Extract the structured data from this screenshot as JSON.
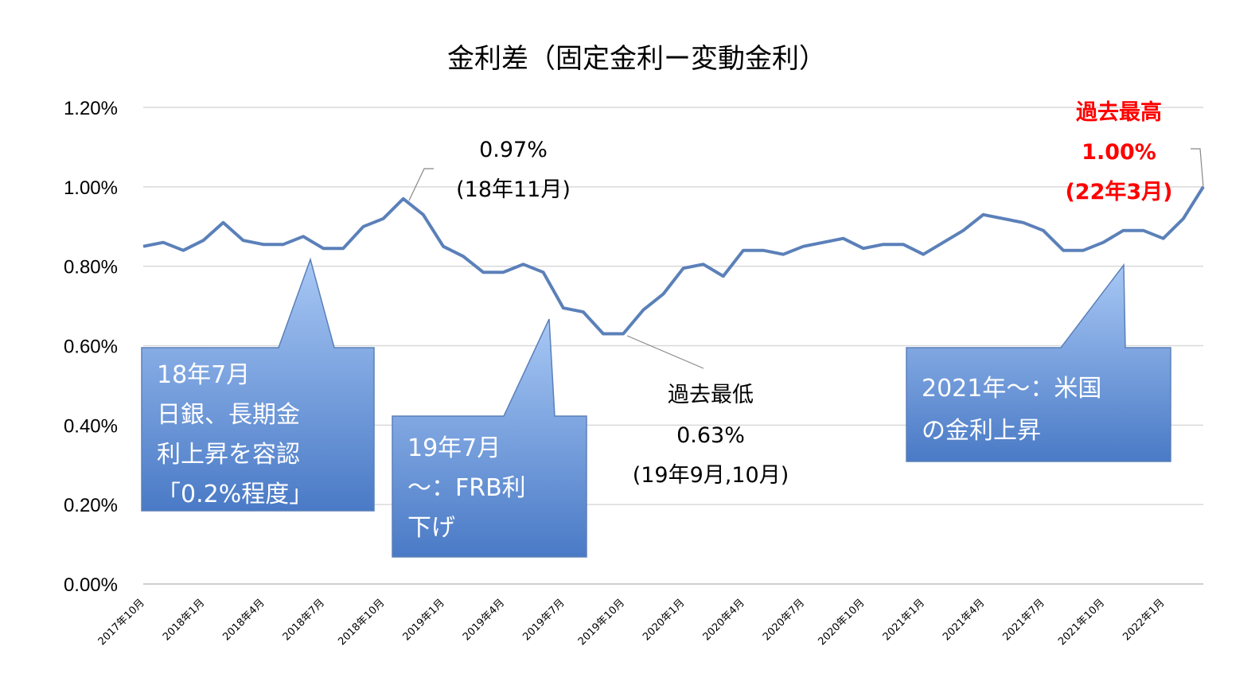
{
  "chart_data": {
    "type": "line",
    "title": "金利差（固定金利ー変動金利）",
    "ylim": [
      0,
      1.2
    ],
    "y_ticks": [
      {
        "value": 0.0,
        "label": "0.00%"
      },
      {
        "value": 0.2,
        "label": "0.20%"
      },
      {
        "value": 0.4,
        "label": "0.40%"
      },
      {
        "value": 0.6,
        "label": "0.60%"
      },
      {
        "value": 0.8,
        "label": "0.80%"
      },
      {
        "value": 1.0,
        "label": "1.00%"
      },
      {
        "value": 1.2,
        "label": "1.20%"
      }
    ],
    "grid": true,
    "legend": "none",
    "x_tick_labels": [
      {
        "index": 0,
        "label": "2017年10月"
      },
      {
        "index": 3,
        "label": "2018年1月"
      },
      {
        "index": 6,
        "label": "2018年4月"
      },
      {
        "index": 9,
        "label": "2018年7月"
      },
      {
        "index": 12,
        "label": "2018年10月"
      },
      {
        "index": 15,
        "label": "2019年1月"
      },
      {
        "index": 18,
        "label": "2019年4月"
      },
      {
        "index": 21,
        "label": "2019年7月"
      },
      {
        "index": 24,
        "label": "2019年10月"
      },
      {
        "index": 27,
        "label": "2020年1月"
      },
      {
        "index": 30,
        "label": "2020年4月"
      },
      {
        "index": 33,
        "label": "2020年7月"
      },
      {
        "index": 36,
        "label": "2020年10月"
      },
      {
        "index": 39,
        "label": "2021年1月"
      },
      {
        "index": 42,
        "label": "2021年4月"
      },
      {
        "index": 45,
        "label": "2021年7月"
      },
      {
        "index": 48,
        "label": "2021年10月"
      },
      {
        "index": 51,
        "label": "2022年1月"
      }
    ],
    "series": [
      {
        "color": "#5b80b9",
        "values": [
          0.85,
          0.86,
          0.84,
          0.865,
          0.91,
          0.865,
          0.855,
          0.855,
          0.875,
          0.845,
          0.845,
          0.9,
          0.92,
          0.97,
          0.93,
          0.85,
          0.825,
          0.785,
          0.785,
          0.805,
          0.785,
          0.695,
          0.685,
          0.63,
          0.63,
          0.69,
          0.73,
          0.795,
          0.805,
          0.775,
          0.84,
          0.84,
          0.83,
          0.85,
          0.86,
          0.87,
          0.845,
          0.855,
          0.855,
          0.83,
          0.86,
          0.89,
          0.93,
          0.92,
          0.91,
          0.89,
          0.84,
          0.84,
          0.86,
          0.89,
          0.89,
          0.87,
          0.92,
          1.0
        ]
      }
    ],
    "annotations": [
      {
        "lines": [
          "0.97%",
          "(18年11月)"
        ],
        "color": "#000000",
        "point_index": 13
      },
      {
        "lines": [
          "過去最低",
          "0.63%",
          "(19年9月,10月)"
        ],
        "color": "#000000",
        "point_index": 24
      },
      {
        "lines": [
          "過去最高",
          "1.00%",
          "(22年3月)"
        ],
        "color": "#ff0000",
        "point_index": 53
      }
    ],
    "callouts": [
      {
        "lines": [
          "18年7月",
          "日銀、長期金",
          "利上昇を容認",
          "「0.2%程度」"
        ]
      },
      {
        "lines": [
          "19年7月",
          "～：FRB利",
          "下げ"
        ]
      },
      {
        "lines": [
          "2021年～：米国",
          "の金利上昇"
        ]
      }
    ]
  }
}
